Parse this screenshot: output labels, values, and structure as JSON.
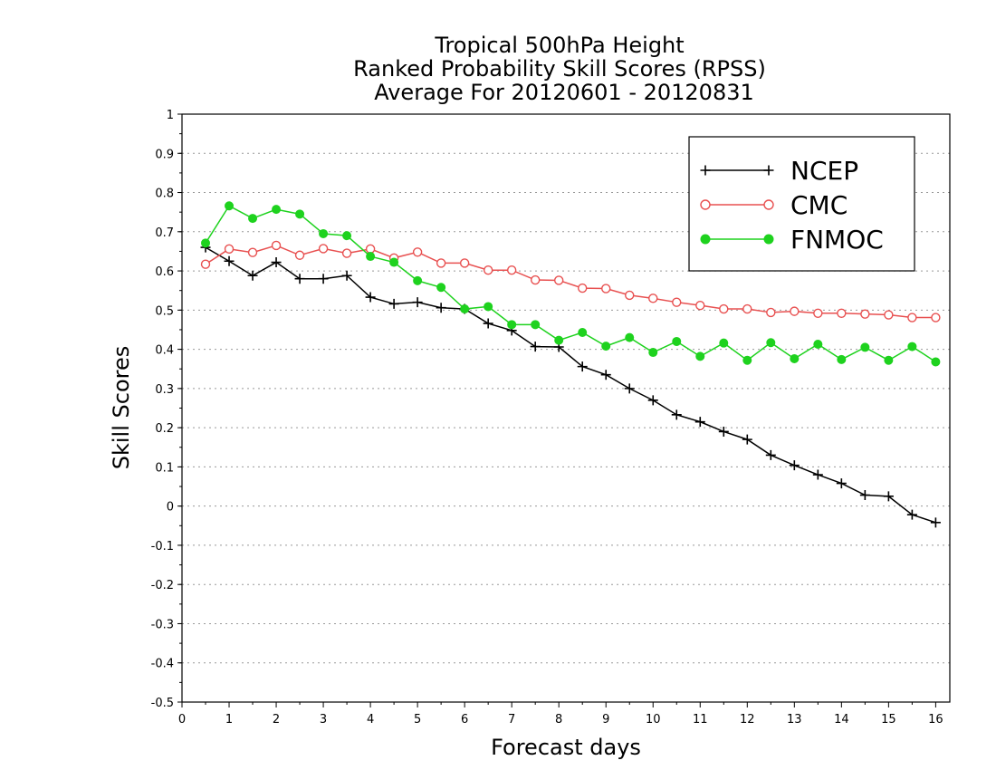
{
  "chart_data": {
    "type": "line",
    "title": [
      "Tropical 500hPa Height",
      "Ranked Probability Skill Scores (RPSS)",
      "Average For 20120601 - 20120831"
    ],
    "xlabel": "Forecast days",
    "ylabel": "Skill Scores",
    "xlim": [
      0,
      16.3
    ],
    "ylim": [
      -0.5,
      1
    ],
    "xticks": [
      0,
      1,
      2,
      3,
      4,
      5,
      6,
      7,
      8,
      9,
      10,
      11,
      12,
      13,
      14,
      15,
      16
    ],
    "xtick_labels": [
      "0",
      "1",
      "2",
      "3",
      "4",
      "5",
      "6",
      "7",
      "8",
      "9",
      "10",
      "11",
      "12",
      "13",
      "14",
      "15",
      "16"
    ],
    "yticks": [
      -0.5,
      -0.4,
      -0.3,
      -0.2,
      -0.1,
      0,
      0.1,
      0.2,
      0.3,
      0.4,
      0.5,
      0.6,
      0.7,
      0.8,
      0.9,
      1
    ],
    "ytick_labels": [
      "-0.5",
      "-0.4",
      "-0.3",
      "-0.2",
      "-0.1",
      "0",
      "0.1",
      "0.2",
      "0.3",
      "0.4",
      "0.5",
      "0.6",
      "0.7",
      "0.8",
      "0.9",
      "1"
    ],
    "grid": "horizontal dotted",
    "legend_position": "top-right",
    "x": [
      0.5,
      1,
      1.5,
      2,
      2.5,
      3,
      3.5,
      4,
      4.5,
      5,
      5.5,
      6,
      6.5,
      7,
      7.5,
      8,
      8.5,
      9,
      9.5,
      10,
      10.5,
      11,
      11.5,
      12,
      12.5,
      13,
      13.5,
      14,
      14.5,
      15,
      15.5,
      16
    ],
    "series": [
      {
        "name": "NCEP",
        "color": "#000000",
        "marker": "plus",
        "values": [
          0.66,
          0.625,
          0.588,
          0.622,
          0.58,
          0.58,
          0.588,
          0.533,
          0.516,
          0.52,
          0.506,
          0.503,
          0.466,
          0.448,
          0.407,
          0.406,
          0.356,
          0.335,
          0.3,
          0.27,
          0.233,
          0.215,
          0.19,
          0.17,
          0.13,
          0.104,
          0.08,
          0.058,
          0.028,
          0.025,
          -0.022,
          -0.042
        ]
      },
      {
        "name": "CMC",
        "color": "#e85050",
        "marker": "open-circle",
        "values": [
          0.617,
          0.656,
          0.647,
          0.665,
          0.64,
          0.657,
          0.645,
          0.656,
          0.633,
          0.648,
          0.62,
          0.62,
          0.602,
          0.602,
          0.577,
          0.576,
          0.556,
          0.555,
          0.538,
          0.53,
          0.52,
          0.512,
          0.503,
          0.503,
          0.494,
          0.497,
          0.492,
          0.492,
          0.49,
          0.488,
          0.481,
          0.481
        ]
      },
      {
        "name": "FNMOC",
        "color": "#1ed21e",
        "marker": "filled-circle",
        "values": [
          0.671,
          0.766,
          0.734,
          0.757,
          0.745,
          0.695,
          0.69,
          0.637,
          0.622,
          0.575,
          0.558,
          0.503,
          0.509,
          0.463,
          0.463,
          0.423,
          0.443,
          0.408,
          0.43,
          0.392,
          0.42,
          0.382,
          0.416,
          0.372,
          0.417,
          0.376,
          0.413,
          0.374,
          0.405,
          0.372,
          0.407,
          0.368
        ]
      }
    ]
  }
}
